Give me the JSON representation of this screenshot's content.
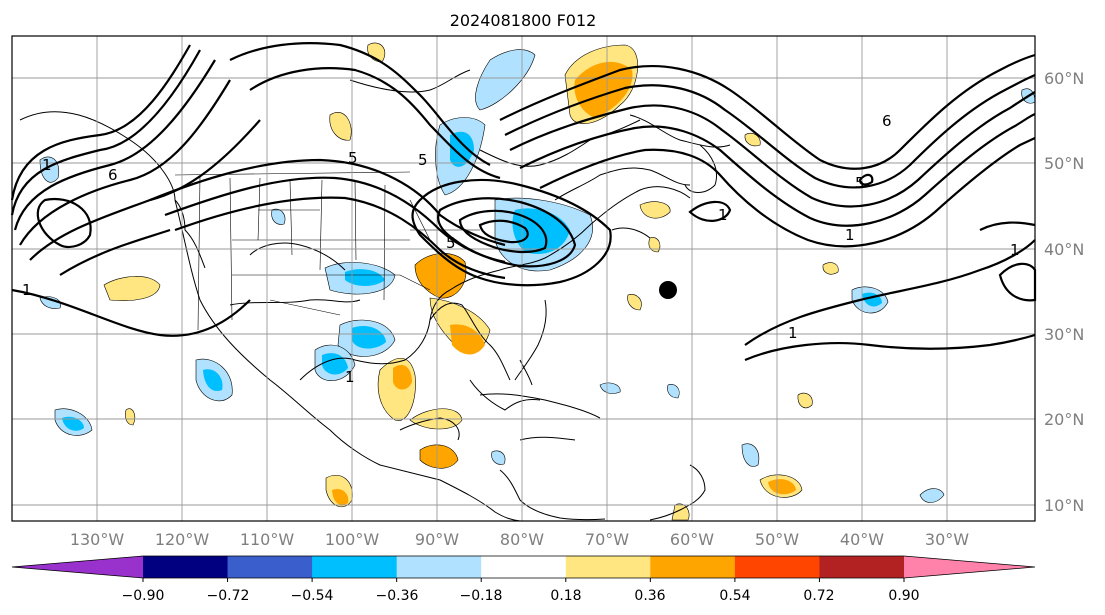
{
  "title": "2024081800 F012",
  "map": {
    "lon_labels": [
      "130°W",
      "120°W",
      "110°W",
      "100°W",
      "90°W",
      "80°W",
      "70°W",
      "60°W",
      "50°W",
      "40°W",
      "30°W"
    ],
    "lat_labels": [
      "60°N",
      "50°N",
      "40°N",
      "30°N",
      "20°N",
      "10°N"
    ],
    "contour_labels": [
      "1",
      "5",
      "6",
      "6",
      "5",
      "1",
      "1",
      "1",
      "1",
      "1",
      "5",
      "5",
      "1"
    ],
    "marker": "storm-center-dot"
  },
  "colorbar": {
    "ticks": [
      "−0.90",
      "−0.72",
      "−0.54",
      "−0.36",
      "−0.18",
      "0.18",
      "0.36",
      "0.54",
      "0.72",
      "0.90"
    ],
    "colors": [
      "#9932cc",
      "#000080",
      "#3a5fcd",
      "#00bfff",
      "#b0e2ff",
      "#ffffff",
      "#ffe680",
      "#ffa500",
      "#ff4500",
      "#b22222",
      "#ff82ab"
    ]
  }
}
